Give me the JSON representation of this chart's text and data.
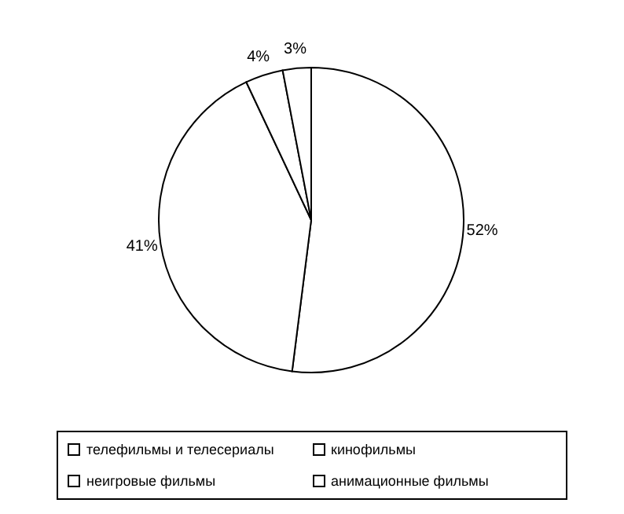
{
  "chart_data": {
    "type": "pie",
    "categories": [
      "телефильмы и телесериалы",
      "кинофильмы",
      "неигровые фильмы",
      "анимационные фильмы"
    ],
    "values": [
      52,
      41,
      4,
      3
    ],
    "colors": [
      "#ffffff",
      "#ffffff",
      "#ffffff",
      "#ffffff"
    ],
    "value_labels": [
      "52%",
      "41%",
      "4%",
      "3%"
    ],
    "legend": "bottom"
  }
}
